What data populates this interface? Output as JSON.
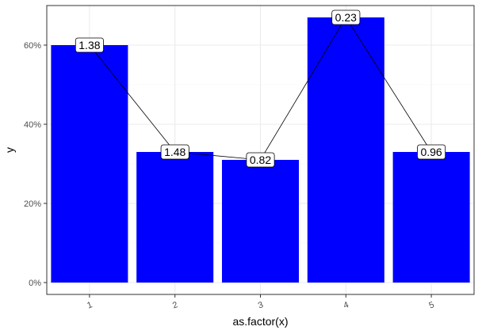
{
  "chart_data": {
    "type": "bar",
    "title": "",
    "xlabel": "as.factor(x)",
    "ylabel": "y",
    "categories": [
      "1",
      "2",
      "3",
      "4",
      "5"
    ],
    "values": [
      0.6,
      0.33,
      0.31,
      0.67,
      0.33
    ],
    "labels": [
      "1.38",
      "1.48",
      "0.82",
      "0.23",
      "0.96"
    ],
    "ylim": [
      -0.03,
      0.7
    ],
    "yticks": [
      0,
      0.2,
      0.4,
      0.6
    ],
    "ytick_labels": [
      "0%",
      "20%",
      "40%",
      "60%"
    ],
    "grid": true,
    "legend": "none",
    "overlay": "line connecting bar tops with label boxes",
    "colors": {
      "bar": "#0000ff",
      "line": "#000000",
      "grid_major": "#ebebeb",
      "grid_minor": "#f5f5f5",
      "panel_border": "#333333",
      "label_fill": "#ffffff"
    }
  }
}
